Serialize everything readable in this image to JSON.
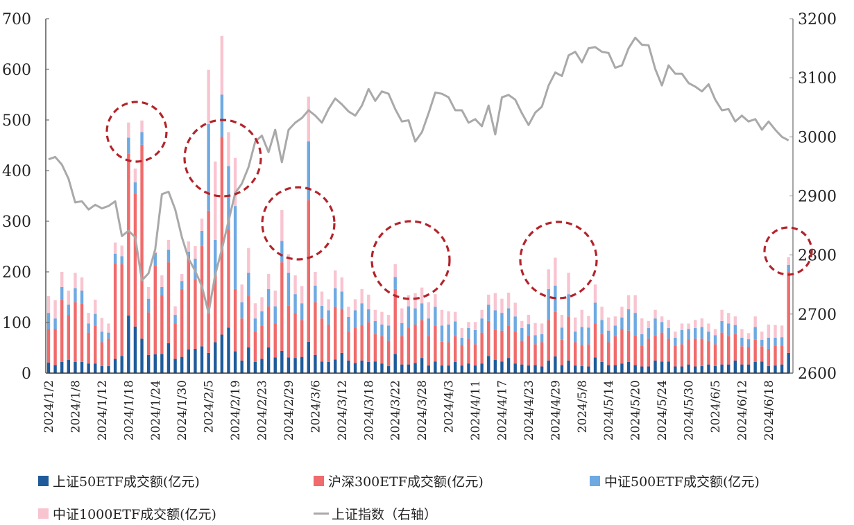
{
  "chart_data": {
    "type": "bar",
    "stacked": true,
    "left_axis": {
      "ylim": [
        0,
        700
      ],
      "ticks": [
        "0",
        "100",
        "200",
        "300",
        "400",
        "500",
        "600",
        "700"
      ]
    },
    "right_axis": {
      "ylim": [
        2600,
        3200
      ],
      "ticks": [
        "2600",
        "2700",
        "2800",
        "2900",
        "3000",
        "3100",
        "3200"
      ]
    },
    "x_tick_labels": [
      "2024/1/2",
      "2024/1/8",
      "2024/1/12",
      "2024/1/18",
      "2024/1/24",
      "2024/1/30",
      "2024/2/5",
      "2024/2/19",
      "2024/2/23",
      "2024/2/29",
      "2024/3/6",
      "2024/3/12",
      "2024/3/18",
      "2024/3/22",
      "2024/3/28",
      "2024/4/3",
      "2024/4/11",
      "2024/4/17",
      "2024/4/23",
      "2024/4/29",
      "2024/5/8",
      "2024/5/14",
      "2024/5/20",
      "2024/5/24",
      "2024/5/30",
      "2024/6/5",
      "2024/6/12",
      "2024/6/18"
    ],
    "x_tick_every": 4,
    "grid": false,
    "legend_position": "bottom",
    "series": [
      {
        "name": "上证50ETF成交额(亿元)",
        "type": "bar",
        "axis": "left",
        "color": "#1f5b9a",
        "values": [
          21,
          16,
          22,
          26,
          22,
          22,
          19,
          19,
          14,
          14,
          28,
          34,
          114,
          92,
          68,
          36,
          37,
          38,
          59,
          28,
          32,
          47,
          48,
          53,
          40,
          61,
          76,
          90,
          43,
          25,
          51,
          22,
          28,
          51,
          31,
          44,
          31,
          30,
          32,
          62,
          36,
          23,
          22,
          27,
          40,
          25,
          20,
          25,
          22,
          23,
          19,
          14,
          38,
          17,
          17,
          20,
          30,
          15,
          23,
          15,
          15,
          22,
          15,
          19,
          15,
          19,
          34,
          26,
          23,
          30,
          19,
          17,
          15,
          16,
          13,
          25,
          33,
          16,
          25,
          15,
          14,
          13,
          31,
          22,
          16,
          16,
          19,
          22,
          16,
          13,
          13,
          25,
          23,
          23,
          13,
          13,
          17,
          13,
          14,
          17,
          14,
          17,
          17,
          25,
          17,
          17,
          22,
          23,
          14,
          15,
          17,
          40
        ]
      },
      {
        "name": "沪深300ETF成交额(亿元)",
        "type": "bar",
        "axis": "left",
        "color": "#f06b6b",
        "values": [
          66,
          71,
          123,
          89,
          118,
          116,
          61,
          75,
          47,
          54,
          189,
          181,
          319,
          262,
          383,
          84,
          175,
          116,
          160,
          70,
          134,
          186,
          138,
          198,
          281,
          132,
          391,
          194,
          123,
          83,
          101,
          60,
          66,
          81,
          67,
          175,
          102,
          89,
          73,
          280,
          104,
          85,
          74,
          104,
          87,
          57,
          69,
          70,
          79,
          54,
          54,
          50,
          128,
          56,
          72,
          76,
          75,
          58,
          71,
          47,
          46,
          51,
          41,
          49,
          42,
          61,
          69,
          59,
          61,
          64,
          63,
          47,
          60,
          41,
          48,
          80,
          88,
          50,
          87,
          46,
          42,
          44,
          67,
          55,
          45,
          57,
          68,
          62,
          59,
          41,
          55,
          50,
          57,
          45,
          41,
          44,
          50,
          55,
          54,
          47,
          43,
          63,
          56,
          52,
          36,
          35,
          44,
          30,
          34,
          39,
          37,
          160
        ]
      },
      {
        "name": "中证500ETF成交额(亿元)",
        "type": "bar",
        "axis": "left",
        "color": "#6ea9e2",
        "values": [
          32,
          21,
          25,
          20,
          28,
          25,
          18,
          23,
          21,
          12,
          19,
          16,
          32,
          23,
          25,
          27,
          25,
          16,
          25,
          17,
          16,
          7,
          40,
          30,
          171,
          70,
          83,
          125,
          164,
          32,
          46,
          26,
          28,
          34,
          34,
          42,
          65,
          37,
          33,
          116,
          33,
          25,
          28,
          37,
          34,
          29,
          35,
          43,
          25,
          26,
          23,
          30,
          24,
          26,
          43,
          32,
          33,
          35,
          37,
          32,
          35,
          29,
          14,
          21,
          28,
          28,
          32,
          39,
          35,
          34,
          30,
          25,
          22,
          18,
          16,
          61,
          52,
          24,
          44,
          21,
          35,
          33,
          41,
          28,
          23,
          21,
          23,
          42,
          44,
          23,
          21,
          33,
          21,
          21,
          16,
          28,
          20,
          21,
          23,
          18,
          18,
          23,
          25,
          18,
          17,
          15,
          25,
          13,
          22,
          16,
          17,
          14
        ]
      },
      {
        "name": "中证1000ETF成交额(亿元)",
        "type": "bar",
        "axis": "left",
        "color": "#f8c4d0",
        "values": [
          33,
          36,
          30,
          28,
          30,
          26,
          21,
          28,
          27,
          18,
          22,
          21,
          30,
          27,
          23,
          23,
          3,
          23,
          19,
          17,
          14,
          20,
          25,
          24,
          107,
          155,
          116,
          67,
          95,
          35,
          49,
          30,
          28,
          30,
          31,
          61,
          37,
          37,
          34,
          88,
          27,
          28,
          22,
          35,
          28,
          20,
          22,
          28,
          29,
          22,
          25,
          21,
          25,
          29,
          22,
          30,
          31,
          32,
          25,
          31,
          26,
          19,
          19,
          12,
          16,
          17,
          20,
          34,
          28,
          31,
          27,
          14,
          18,
          24,
          21,
          39,
          55,
          25,
          42,
          28,
          34,
          23,
          36,
          26,
          26,
          18,
          21,
          28,
          35,
          31,
          14,
          17,
          11,
          16,
          12,
          13,
          11,
          16,
          17,
          16,
          12,
          22,
          21,
          17,
          17,
          12,
          21,
          16,
          26,
          25,
          23,
          15
        ]
      },
      {
        "name": "上证指数（右轴）",
        "type": "line",
        "axis": "right",
        "color": "#a9a9a9",
        "values": [
          2962,
          2966,
          2953,
          2929,
          2889,
          2891,
          2877,
          2885,
          2879,
          2883,
          2891,
          2832,
          2841,
          2830,
          2757,
          2769,
          2810,
          2903,
          2907,
          2877,
          2830,
          2794,
          2773,
          2747,
          2702,
          2767,
          2810,
          2858,
          2905,
          2921,
          2949,
          2992,
          3002,
          2974,
          3012,
          2957,
          3012,
          3024,
          3032,
          3045,
          3036,
          3024,
          3047,
          3065,
          3055,
          3043,
          3036,
          3053,
          3081,
          3061,
          3077,
          3073,
          3047,
          3026,
          3028,
          2992,
          3008,
          3040,
          3075,
          3073,
          3067,
          3045,
          3045,
          3024,
          3030,
          3018,
          3053,
          3004,
          3067,
          3071,
          3063,
          3040,
          3020,
          3041,
          3051,
          3087,
          3109,
          3103,
          3138,
          3144,
          3126,
          3150,
          3152,
          3144,
          3142,
          3117,
          3121,
          3150,
          3168,
          3156,
          3155,
          3115,
          3087,
          3121,
          3107,
          3107,
          3091,
          3085,
          3077,
          3089,
          3063,
          3045,
          3047,
          3026,
          3036,
          3026,
          3030,
          3012,
          3026,
          3012,
          3000,
          2994
        ]
      }
    ],
    "annotation_color": "#b3242b"
  },
  "legend": {
    "items": [
      {
        "label": "上证50ETF成交额(亿元)",
        "color": "#1f5b9a"
      },
      {
        "label": "沪深300ETF成交额(亿元)",
        "color": "#f06b6b"
      },
      {
        "label": "中证500ETF成交额(亿元)",
        "color": "#6ea9e2"
      },
      {
        "label": "中证1000ETF成交额(亿元)",
        "color": "#f8c4d0"
      },
      {
        "label": "上证指数（右轴）",
        "color": "#a9a9a9"
      }
    ]
  }
}
